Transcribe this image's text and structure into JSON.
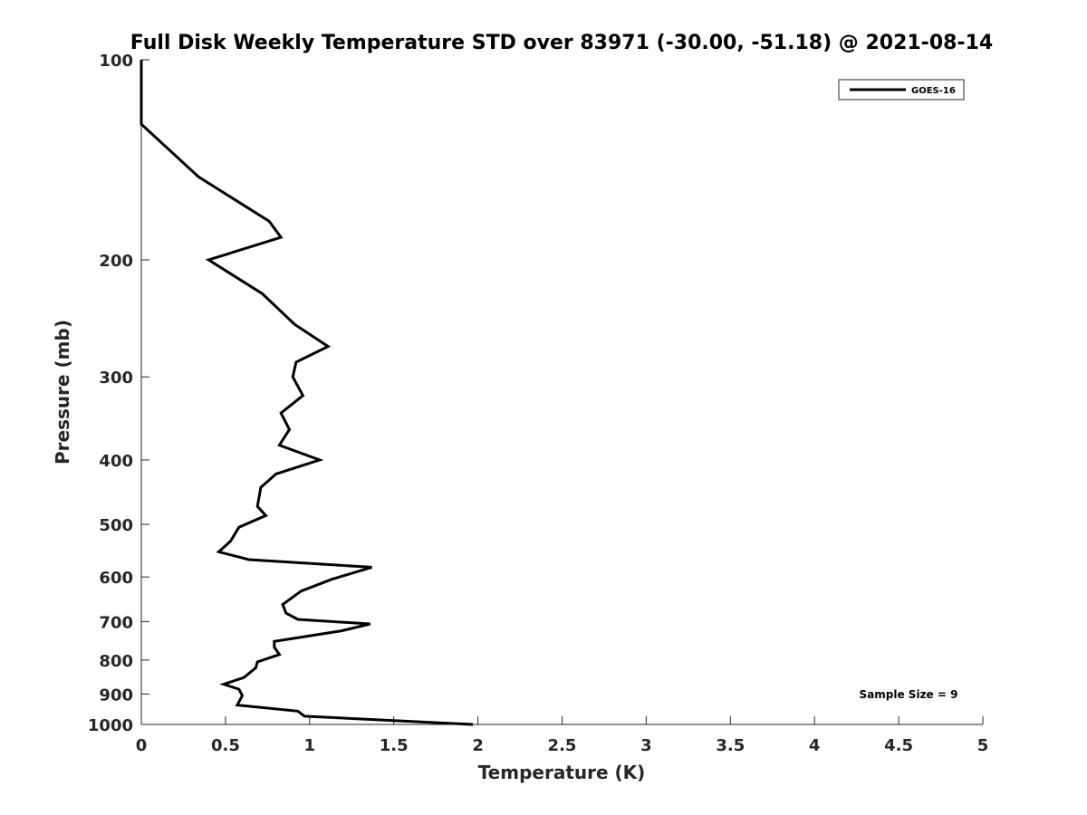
{
  "chart_data": {
    "type": "line",
    "title": "Full Disk Weekly Temperature STD over 83971 (-30.00, -51.18) @ 2021-08-14",
    "xlabel": "Temperature (K)",
    "ylabel": "Pressure (mb)",
    "xlim": [
      0,
      5
    ],
    "ylim": [
      100,
      1000
    ],
    "y_scale": "log",
    "y_reversed": true,
    "x_ticks": [
      "0",
      "0.5",
      "1",
      "1.5",
      "2",
      "2.5",
      "3",
      "3.5",
      "4",
      "4.5",
      "5"
    ],
    "y_ticks": [
      "100",
      "200",
      "300",
      "400",
      "500",
      "600",
      "700",
      "800",
      "900",
      "1000"
    ],
    "legend_position": "top-right",
    "grid": false,
    "annotation": "Sample Size = 9",
    "series": [
      {
        "name": "GOES-16",
        "color": "#000000",
        "points": [
          [
            0.0,
            100
          ],
          [
            0.0,
            125
          ],
          [
            0.34,
            150
          ],
          [
            0.76,
            175
          ],
          [
            0.83,
            185
          ],
          [
            0.4,
            200
          ],
          [
            0.72,
            225
          ],
          [
            0.91,
            250
          ],
          [
            1.11,
            270
          ],
          [
            0.92,
            285
          ],
          [
            0.9,
            300
          ],
          [
            0.96,
            320
          ],
          [
            0.83,
            340
          ],
          [
            0.88,
            360
          ],
          [
            0.82,
            380
          ],
          [
            1.06,
            400
          ],
          [
            0.8,
            420
          ],
          [
            0.71,
            440
          ],
          [
            0.69,
            470
          ],
          [
            0.74,
            485
          ],
          [
            0.58,
            505
          ],
          [
            0.53,
            530
          ],
          [
            0.46,
            550
          ],
          [
            0.64,
            565
          ],
          [
            1.37,
            580
          ],
          [
            1.13,
            605
          ],
          [
            0.95,
            630
          ],
          [
            0.84,
            660
          ],
          [
            0.86,
            680
          ],
          [
            0.93,
            695
          ],
          [
            1.36,
            706
          ],
          [
            1.19,
            723
          ],
          [
            0.79,
            750
          ],
          [
            0.79,
            765
          ],
          [
            0.82,
            785
          ],
          [
            0.69,
            805
          ],
          [
            0.68,
            822
          ],
          [
            0.61,
            850
          ],
          [
            0.49,
            870
          ],
          [
            0.58,
            885
          ],
          [
            0.6,
            905
          ],
          [
            0.57,
            935
          ],
          [
            0.93,
            955
          ],
          [
            0.97,
            972
          ],
          [
            1.97,
            1000
          ]
        ]
      }
    ]
  }
}
